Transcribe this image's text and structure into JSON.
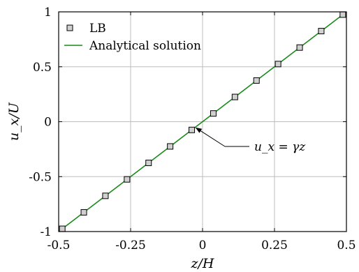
{
  "chart_data": {
    "type": "scatter",
    "title": "",
    "xlabel": "z/H",
    "ylabel": "u_x/U",
    "xlim": [
      -0.5,
      0.5
    ],
    "ylim": [
      -1,
      1
    ],
    "grid": true,
    "legend_position": "top-left",
    "x_ticks": [
      {
        "value": -0.5,
        "label": "-0.5"
      },
      {
        "value": -0.25,
        "label": "-0.25"
      },
      {
        "value": 0,
        "label": "0"
      },
      {
        "value": 0.25,
        "label": "0.25"
      },
      {
        "value": 0.5,
        "label": "0.5"
      }
    ],
    "y_ticks": [
      {
        "value": -1,
        "label": "-1"
      },
      {
        "value": -0.5,
        "label": "-0.5"
      },
      {
        "value": 0,
        "label": "0"
      },
      {
        "value": 0.5,
        "label": "0.5"
      },
      {
        "value": 1,
        "label": "1"
      }
    ],
    "series": [
      {
        "name": "LB",
        "kind": "markers",
        "marker": "square",
        "color": "#d0d0d0",
        "edge_color": "#000000",
        "x": [
          -0.4875,
          -0.4125,
          -0.3375,
          -0.2625,
          -0.1875,
          -0.1125,
          -0.0375,
          0.0375,
          0.1125,
          0.1875,
          0.2625,
          0.3375,
          0.4125,
          0.4875
        ],
        "y": [
          -0.975,
          -0.825,
          -0.675,
          -0.525,
          -0.375,
          -0.225,
          -0.075,
          0.075,
          0.225,
          0.375,
          0.525,
          0.675,
          0.825,
          0.975
        ]
      },
      {
        "name": "Analytical solution",
        "kind": "line",
        "color": "#1a8a1a",
        "x": [
          -0.5,
          0.5
        ],
        "y": [
          -1,
          1
        ]
      }
    ],
    "annotations": [
      {
        "text": "u_x = γz",
        "arrow_to": {
          "x": -0.02,
          "y": -0.04
        }
      }
    ]
  }
}
